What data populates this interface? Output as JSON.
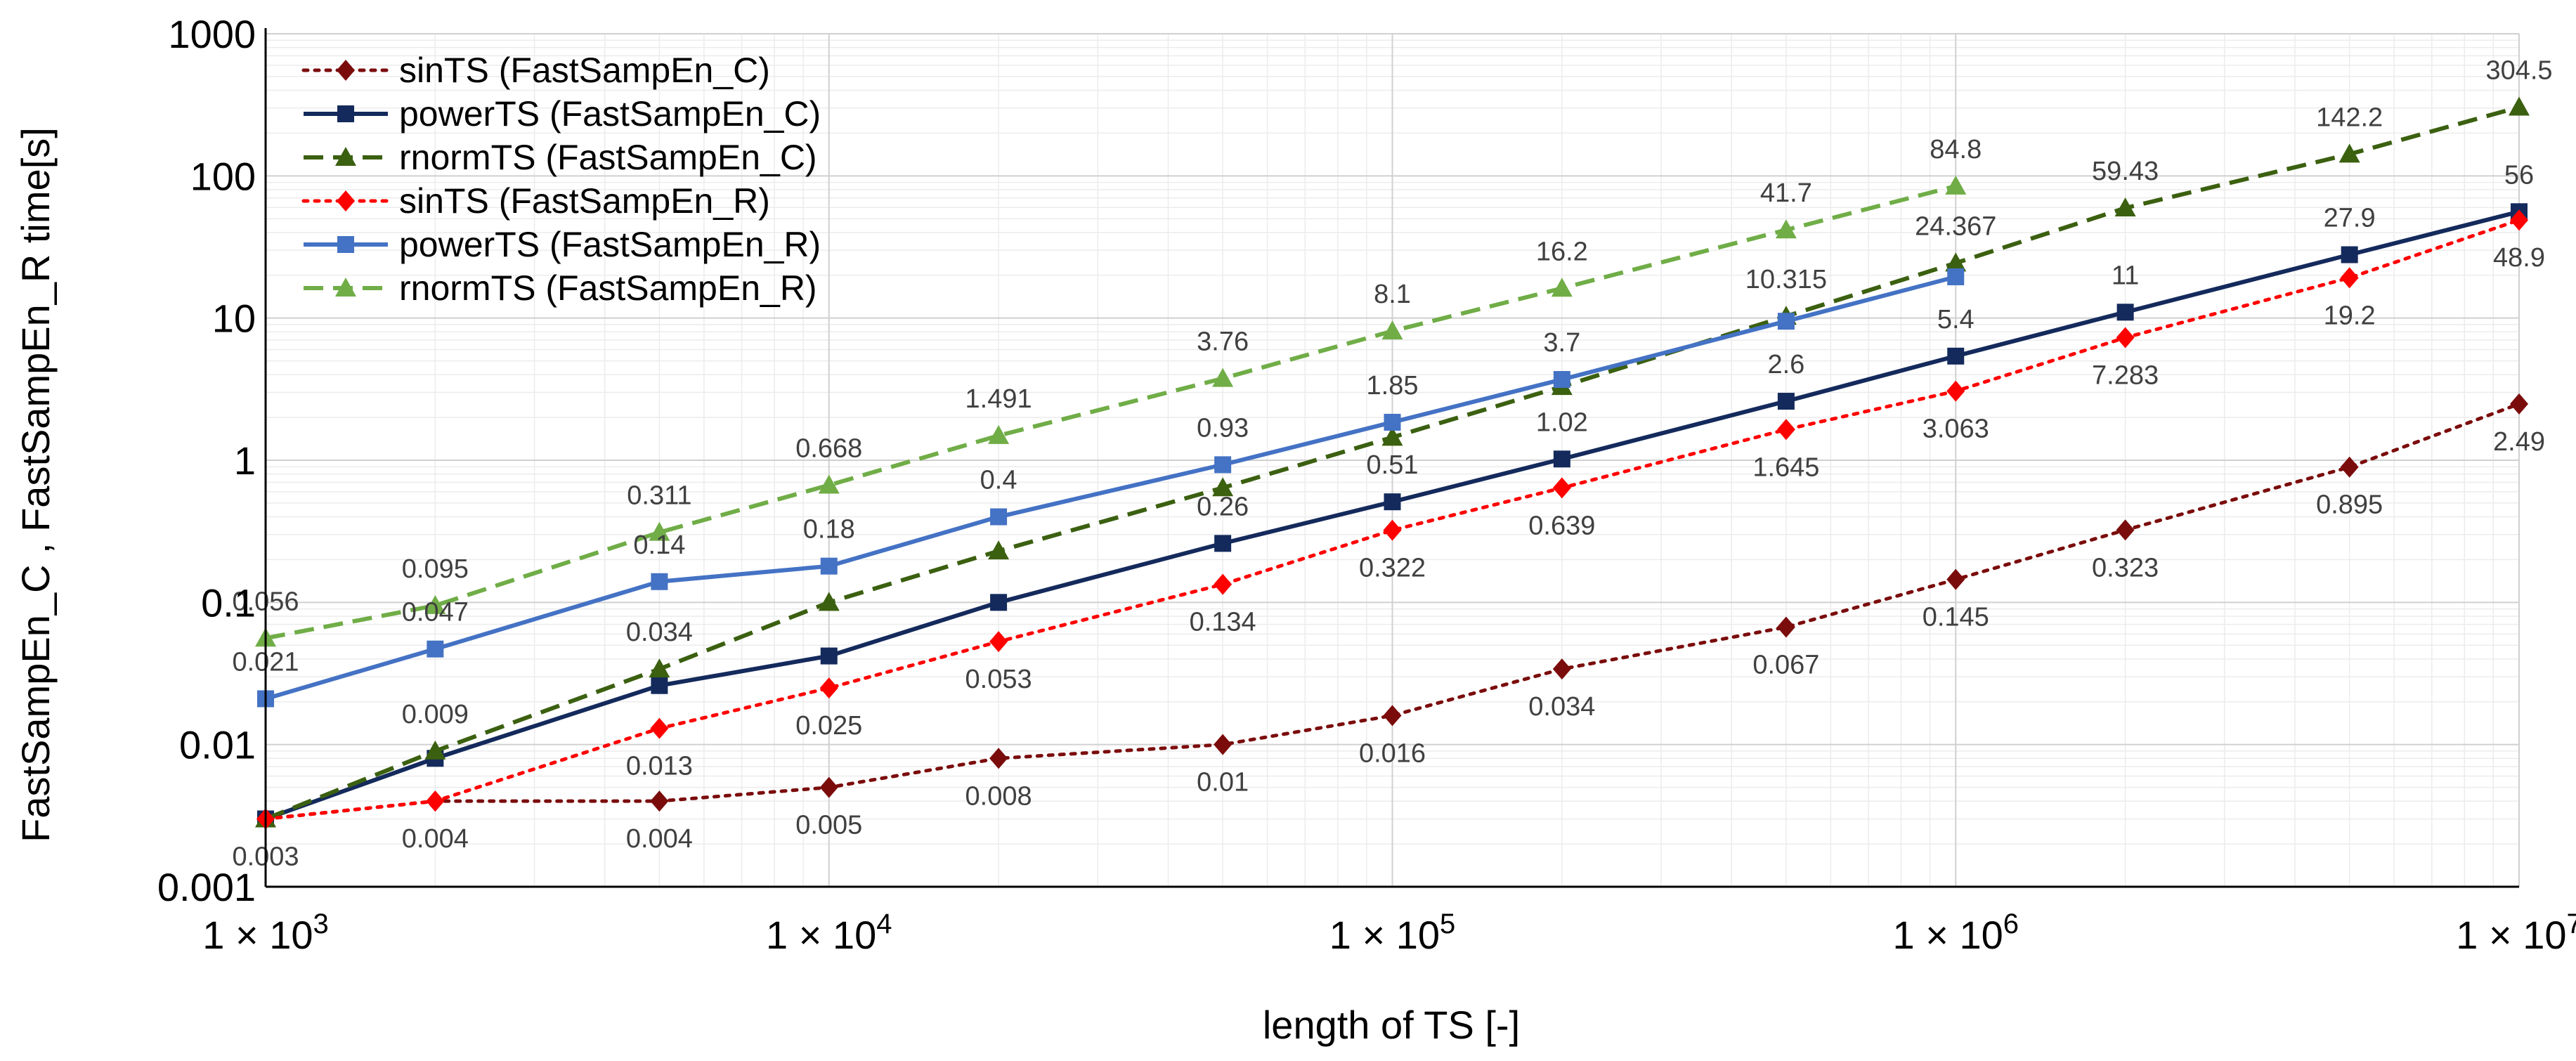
{
  "chart_data": {
    "type": "line",
    "title": "",
    "xlabel": "length of TS [-]",
    "ylabel": "FastSampEn_C ,  FastSampEn_R  time[s]",
    "xscale": "log",
    "yscale": "log",
    "xlim": [
      1000,
      10000000
    ],
    "ylim": [
      0.001,
      1000
    ],
    "x_tick_values": [
      1000,
      10000,
      100000,
      1000000,
      10000000
    ],
    "x_tick_labels": [
      {
        "base": "1 × 10",
        "exp": "3"
      },
      {
        "base": "1 × 10",
        "exp": "4"
      },
      {
        "base": "1 × 10",
        "exp": "5"
      },
      {
        "base": "1 × 10",
        "exp": "6"
      },
      {
        "base": "1 × 10",
        "exp": "7"
      }
    ],
    "y_tick_values": [
      0.001,
      0.01,
      0.1,
      1,
      10,
      100,
      1000
    ],
    "y_tick_labels": [
      "0.001",
      "0.01",
      "0.1",
      "1",
      "10",
      "100",
      "1000"
    ],
    "grid": true,
    "legend_position": "top-left",
    "x": [
      1000,
      2000,
      5000,
      10000,
      20000,
      50000,
      100000,
      200000,
      500000,
      1000000,
      2000000,
      5000000,
      10000000
    ],
    "series": [
      {
        "name": "sinTS (FastSampEn_C)",
        "color": "#7b0c0c",
        "dash": "dot",
        "marker": "diamond",
        "x": [
          1000,
          2000,
          5000,
          10000,
          20000,
          50000,
          100000,
          200000,
          500000,
          1000000,
          2000000,
          5000000,
          10000000
        ],
        "values": [
          0.003,
          0.004,
          0.004,
          0.005,
          0.008,
          0.01,
          0.016,
          0.034,
          0.067,
          0.145,
          0.323,
          0.895,
          2.49
        ],
        "labels": [
          "0.003",
          "0.004",
          "0.004",
          "0.005",
          "0.008",
          "0.01",
          "0.016",
          "0.034",
          "0.067",
          "0.145",
          "0.323",
          "0.895",
          "2.49"
        ],
        "label_pos": "below"
      },
      {
        "name": "powerTS (FastSampEn_C)",
        "color": "#142a5c",
        "dash": "solid",
        "marker": "square",
        "x": [
          1000,
          2000,
          5000,
          10000,
          20000,
          50000,
          100000,
          200000,
          500000,
          1000000,
          2000000,
          5000000,
          10000000
        ],
        "values": [
          0.003,
          0.008,
          0.026,
          0.042,
          0.1,
          0.26,
          0.51,
          1.02,
          2.6,
          5.4,
          11,
          27.9,
          56
        ],
        "labels": [
          "",
          "",
          "",
          "",
          "",
          "0.26",
          "0.51",
          "1.02",
          "2.6",
          "5.4",
          "11",
          "27.9",
          "56"
        ],
        "label_pos": "above"
      },
      {
        "name": "rnormTS (FastSampEn_C)",
        "color": "#3b6010",
        "dash": "dash",
        "marker": "triangle",
        "x": [
          1000,
          2000,
          5000,
          10000,
          20000,
          50000,
          100000,
          200000,
          500000,
          1000000,
          2000000,
          5000000,
          10000000
        ],
        "values": [
          0.003,
          0.009,
          0.034,
          0.1,
          0.23,
          0.64,
          1.45,
          3.3,
          10.3,
          24.367,
          59.43,
          142.2,
          304.5
        ],
        "labels": [
          "",
          "0.009",
          "0.034",
          "",
          "",
          "",
          "",
          "",
          "10.315",
          "24.367",
          "59.43",
          "142.2",
          "304.5"
        ],
        "label_pos": "above"
      },
      {
        "name": "sinTS (FastSampEn_R)",
        "color": "#ff0000",
        "dash": "dot",
        "marker": "diamond",
        "x": [
          1000,
          2000,
          5000,
          10000,
          20000,
          50000,
          100000,
          200000,
          500000,
          1000000,
          2000000,
          5000000,
          10000000
        ],
        "values": [
          0.003,
          0.004,
          0.013,
          0.025,
          0.053,
          0.134,
          0.322,
          0.639,
          1.645,
          3.063,
          7.283,
          19.2,
          48.9
        ],
        "labels": [
          "",
          "",
          "0.013",
          "0.025",
          "0.053",
          "0.134",
          "0.322",
          "0.639",
          "1.645",
          "3.063",
          "7.283",
          "19.2",
          "48.9"
        ],
        "label_pos": "below"
      },
      {
        "name": "powerTS (FastSampEn_R)",
        "color": "#4472c4",
        "dash": "solid",
        "marker": "square",
        "x": [
          1000,
          2000,
          5000,
          10000,
          20000,
          50000,
          100000,
          200000,
          500000,
          1000000
        ],
        "values": [
          0.021,
          0.047,
          0.14,
          0.18,
          0.4,
          0.93,
          1.85,
          3.7,
          9.5,
          19.5
        ],
        "labels": [
          "0.021",
          "0.047",
          "0.14",
          "0.18",
          "0.4",
          "0.93",
          "1.85",
          "3.7",
          "",
          ""
        ],
        "label_pos": "above"
      },
      {
        "name": "rnormTS (FastSampEn_R)",
        "color": "#70ad47",
        "dash": "dash",
        "marker": "triangle",
        "x": [
          1000,
          2000,
          5000,
          10000,
          20000,
          50000,
          100000,
          200000,
          500000,
          1000000
        ],
        "values": [
          0.056,
          0.095,
          0.311,
          0.668,
          1.491,
          3.76,
          8.1,
          16.2,
          41.7,
          84.8
        ],
        "labels": [
          "0.056",
          "0.095",
          "0.311",
          "0.668",
          "1.491",
          "3.76",
          "8.1",
          "16.2",
          "41.7",
          "84.8"
        ],
        "label_pos": "above"
      }
    ]
  }
}
